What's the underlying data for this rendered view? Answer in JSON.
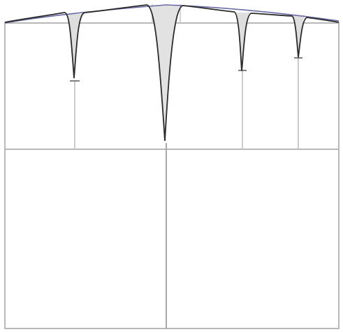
{
  "diagram": {
    "colors": {
      "background": "#ffffff",
      "grid": "#b8b8b8",
      "curve": "#2b2b2b",
      "envelope": "#6a6aa8",
      "fill": "#d9d9d9"
    }
  }
}
